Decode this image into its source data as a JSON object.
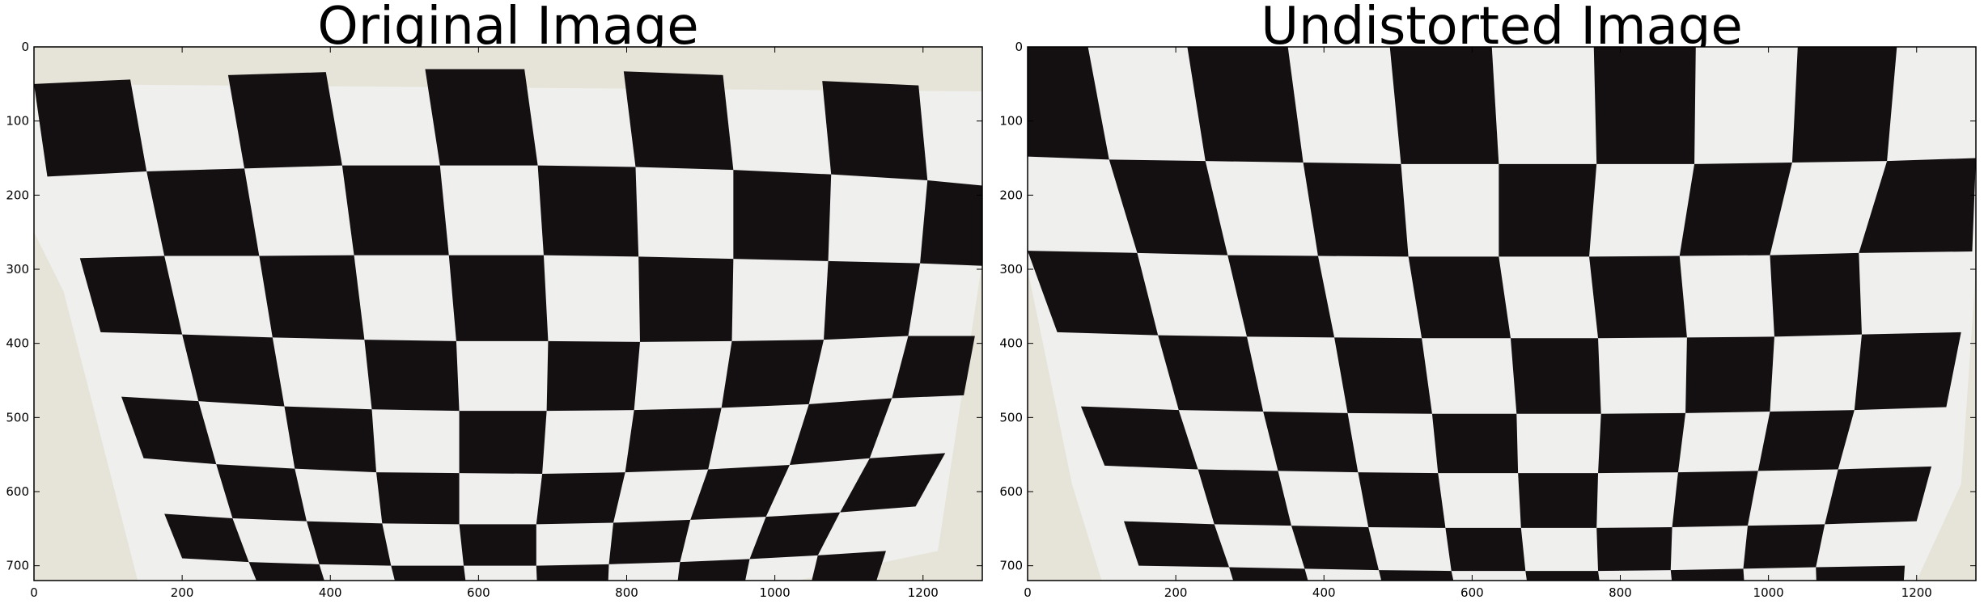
{
  "panels": [
    {
      "title": "Original Image",
      "x_ticks": [
        "0",
        "200",
        "400",
        "600",
        "800",
        "1000",
        "1200"
      ],
      "y_ticks": [
        "0",
        "100",
        "200",
        "300",
        "400",
        "500",
        "600",
        "700"
      ]
    },
    {
      "title": "Undistorted Image",
      "x_ticks": [
        "0",
        "200",
        "400",
        "600",
        "800",
        "1000",
        "1200"
      ],
      "y_ticks": [
        "0",
        "100",
        "200",
        "300",
        "400",
        "500",
        "600",
        "700"
      ]
    }
  ],
  "image_extent": {
    "width": 1280,
    "height": 720
  },
  "colors": {
    "board_dark": "#141012",
    "board_light": "#efefed",
    "wall": "#e6e4d8",
    "frame": "#000000"
  }
}
